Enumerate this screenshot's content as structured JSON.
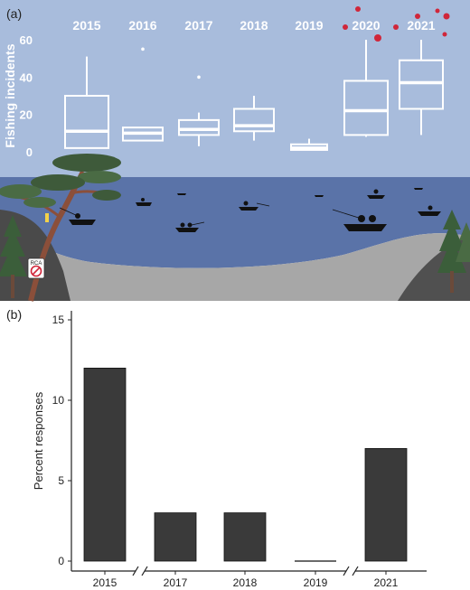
{
  "panels": {
    "a_label": "(a)",
    "b_label": "(b)"
  },
  "sign_text": "RCA",
  "colors": {
    "sky": "#a8bcdc",
    "water": "#5a73a8",
    "shore": "#a7a7a7",
    "box": "#ffffff",
    "bar": "#3a3a3a",
    "virus": "#d0263a"
  },
  "chart_data": [
    {
      "type": "box",
      "panel": "(a)",
      "ylabel": "Fishing incidents",
      "ylim": [
        0,
        62
      ],
      "yticks": [
        0,
        20,
        40,
        60
      ],
      "categories": [
        "2015",
        "2016",
        "2017",
        "2018",
        "2019",
        "2020",
        "2021"
      ],
      "boxes": [
        {
          "year": "2015",
          "min": 2,
          "q1": 2,
          "median": 11,
          "q3": 30,
          "max": 51,
          "outliers": []
        },
        {
          "year": "2016",
          "min": 6,
          "q1": 6,
          "median": 10,
          "q3": 13,
          "max": 13,
          "outliers": [
            55
          ]
        },
        {
          "year": "2017",
          "min": 3,
          "q1": 9,
          "median": 12,
          "q3": 17,
          "max": 21,
          "outliers": [
            40
          ]
        },
        {
          "year": "2018",
          "min": 6,
          "q1": 11,
          "median": 14,
          "q3": 23,
          "max": 30,
          "outliers": []
        },
        {
          "year": "2019",
          "min": 1,
          "q1": 1,
          "median": 2,
          "q3": 4,
          "max": 7,
          "outliers": []
        },
        {
          "year": "2020",
          "min": 8,
          "q1": 9,
          "median": 22,
          "q3": 38,
          "max": 60,
          "outliers": []
        },
        {
          "year": "2021",
          "min": 9,
          "q1": 23,
          "median": 37,
          "q3": 49,
          "max": 60,
          "outliers": []
        }
      ]
    },
    {
      "type": "bar",
      "panel": "(b)",
      "ylabel": "Percent responses",
      "ylim": [
        0,
        15.5
      ],
      "yticks": [
        0,
        5,
        10,
        15
      ],
      "categories": [
        "2015",
        "2017",
        "2018",
        "2019",
        "2021"
      ],
      "values": [
        12,
        3,
        3,
        0,
        7
      ],
      "axis_breaks_after": [
        "2015",
        "2019"
      ]
    }
  ]
}
